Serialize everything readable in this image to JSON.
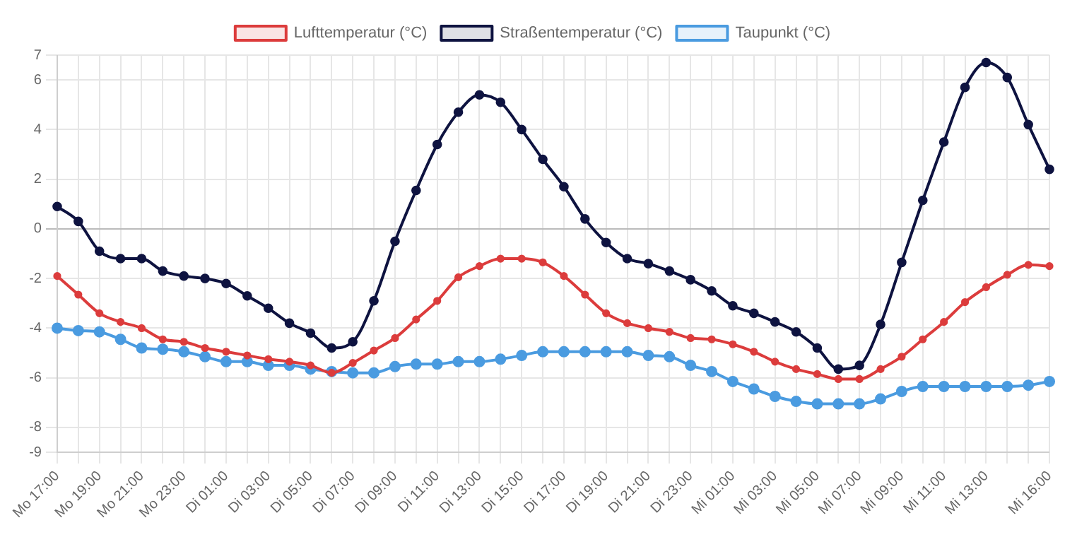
{
  "chart_data": {
    "type": "line",
    "categories": [
      "Mo 17:00",
      null,
      "Mo 19:00",
      null,
      "Mo 21:00",
      null,
      "Mo 23:00",
      null,
      "Di 01:00",
      null,
      "Di 03:00",
      null,
      "Di 05:00",
      null,
      "Di 07:00",
      null,
      "Di 09:00",
      null,
      "Di 11:00",
      null,
      "Di 13:00",
      null,
      "Di 15:00",
      null,
      "Di 17:00",
      null,
      "Di 19:00",
      null,
      "Di 21:00",
      null,
      "Di 23:00",
      null,
      "Mi 01:00",
      null,
      "Mi 03:00",
      null,
      "Mi 05:00",
      null,
      "Mi 07:00",
      null,
      "Mi 09:00",
      null,
      "Mi 11:00",
      null,
      "Mi 13:00",
      null,
      null,
      "Mi 16:00"
    ],
    "series": [
      {
        "name": "Lufttemperatur (°C)",
        "color": "#dc3c3c",
        "values": [
          -1.9,
          -2.65,
          -3.4,
          -3.75,
          -4.0,
          -4.45,
          -4.55,
          -4.8,
          -4.95,
          -5.1,
          -5.25,
          -5.35,
          -5.5,
          -5.8,
          -5.4,
          -4.9,
          -4.4,
          -3.65,
          -2.9,
          -1.95,
          -1.5,
          -1.2,
          -1.2,
          -1.35,
          -1.9,
          -2.65,
          -3.4,
          -3.8,
          -4.0,
          -4.15,
          -4.4,
          -4.45,
          -4.65,
          -4.95,
          -5.35,
          -5.65,
          -5.85,
          -6.05,
          -6.05,
          -5.65,
          -5.15,
          -4.45,
          -3.75,
          -2.95,
          -2.35,
          -1.85,
          -1.45,
          -1.5
        ]
      },
      {
        "name": "Straßentemperatur (°C)",
        "color": "#0e1340",
        "values": [
          0.9,
          0.3,
          -0.9,
          -1.2,
          -1.2,
          -1.7,
          -1.9,
          -2.0,
          -2.2,
          -2.7,
          -3.2,
          -3.8,
          -4.2,
          -4.8,
          -4.55,
          -2.9,
          -0.5,
          1.55,
          3.4,
          4.7,
          5.4,
          5.1,
          4.0,
          2.8,
          1.7,
          0.4,
          -0.55,
          -1.2,
          -1.4,
          -1.7,
          -2.05,
          -2.5,
          -3.1,
          -3.4,
          -3.75,
          -4.15,
          -4.8,
          -5.65,
          -5.5,
          -3.85,
          -1.35,
          1.15,
          3.5,
          5.7,
          6.7,
          6.1,
          4.2,
          2.4
        ]
      },
      {
        "name": "Taupunkt (°C)",
        "color": "#4a9be0",
        "values": [
          -4.0,
          -4.1,
          -4.15,
          -4.45,
          -4.8,
          -4.85,
          -4.95,
          -5.15,
          -5.35,
          -5.35,
          -5.5,
          -5.5,
          -5.65,
          -5.75,
          -5.8,
          -5.8,
          -5.55,
          -5.45,
          -5.45,
          -5.35,
          -5.35,
          -5.25,
          -5.1,
          -4.95,
          -4.95,
          -4.95,
          -4.95,
          -4.95,
          -5.1,
          -5.15,
          -5.5,
          -5.75,
          -6.15,
          -6.45,
          -6.75,
          -6.95,
          -7.05,
          -7.05,
          -7.05,
          -6.85,
          -6.55,
          -6.35,
          -6.35,
          -6.35,
          -6.35,
          -6.35,
          -6.3,
          -6.15
        ]
      }
    ],
    "ylim": [
      -9,
      7
    ],
    "yticks": [
      -9,
      -8,
      -6,
      -4,
      -2,
      0,
      2,
      4,
      6,
      7
    ],
    "grid": true,
    "legend": "top",
    "marker": "circle",
    "line_style": "solid"
  }
}
